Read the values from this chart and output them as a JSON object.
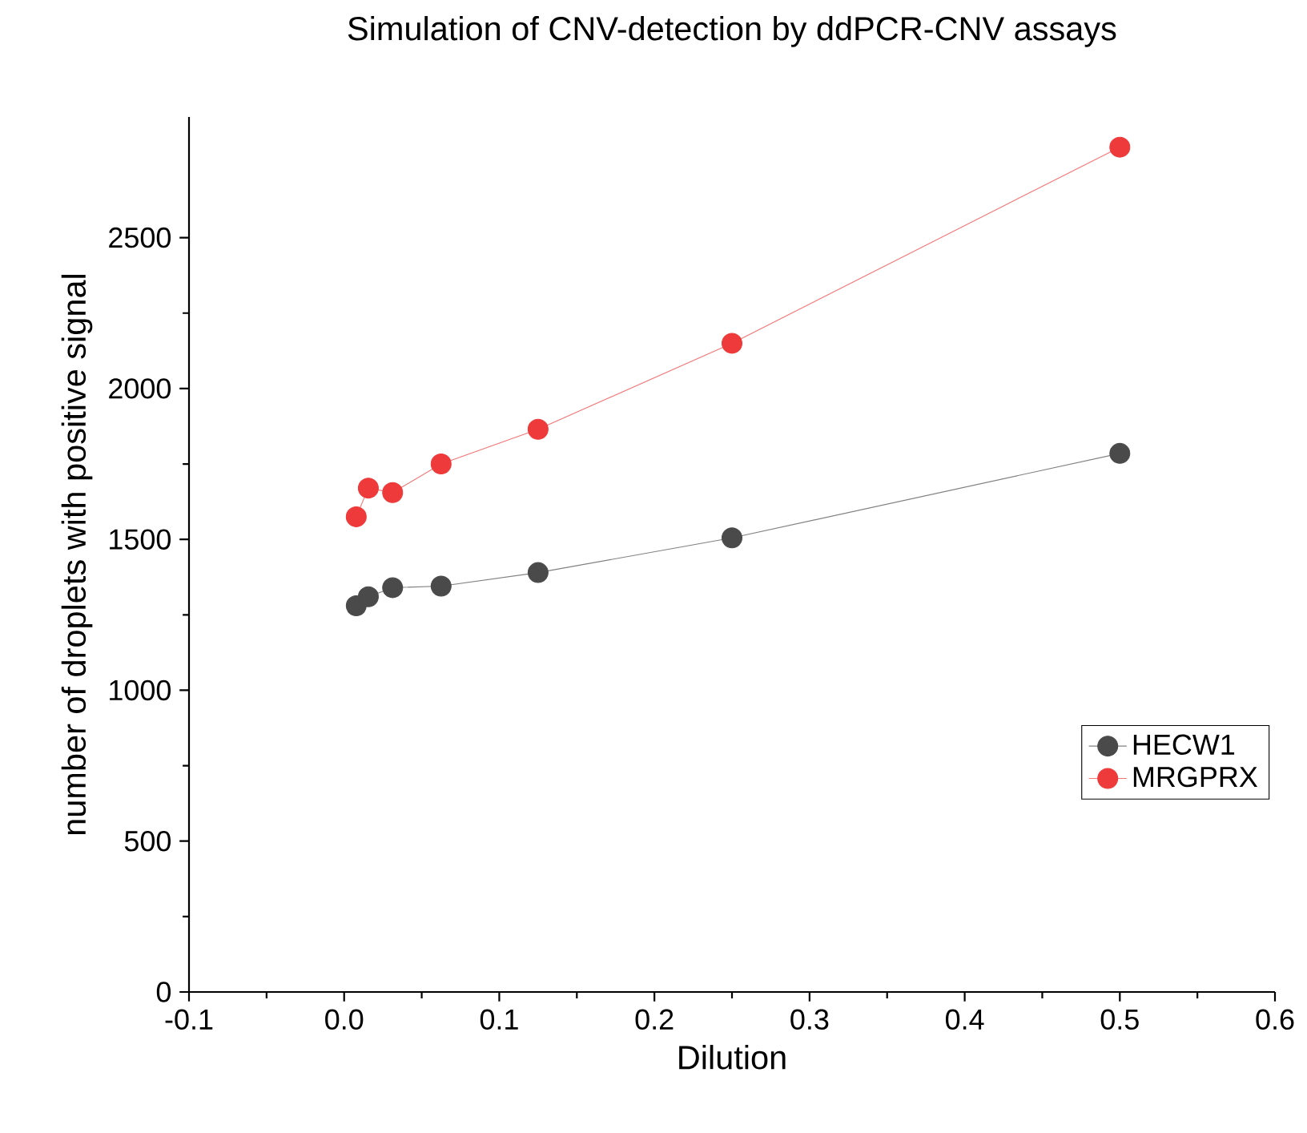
{
  "chart_data": {
    "type": "line",
    "title": "Simulation of CNV-detection by ddPCR-CNV assays",
    "xlabel": "Dilution",
    "ylabel": "number of droplets with positive signal",
    "x": [
      0.0078,
      0.0156,
      0.03125,
      0.0625,
      0.125,
      0.25,
      0.5
    ],
    "series": [
      {
        "name": "HECW1",
        "color": "#4a4a4a",
        "values": [
          1280,
          1310,
          1340,
          1345,
          1390,
          1505,
          1785
        ]
      },
      {
        "name": "MRGPRX",
        "color": "#ee3a3a",
        "values": [
          1575,
          1670,
          1655,
          1750,
          1865,
          2150,
          2800
        ]
      }
    ],
    "xlim": [
      -0.1,
      0.6
    ],
    "xticks": [
      -0.1,
      {
        "value": 0.0,
        "label": "0.0"
      },
      0.1,
      0.2,
      0.3,
      0.4,
      0.5,
      0.6
    ],
    "ylim": [
      0,
      2900
    ],
    "yticks": [
      0,
      500,
      1000,
      1500,
      2000,
      2500
    ],
    "marker": "circle",
    "legend": "bottom right",
    "grid": false
  }
}
